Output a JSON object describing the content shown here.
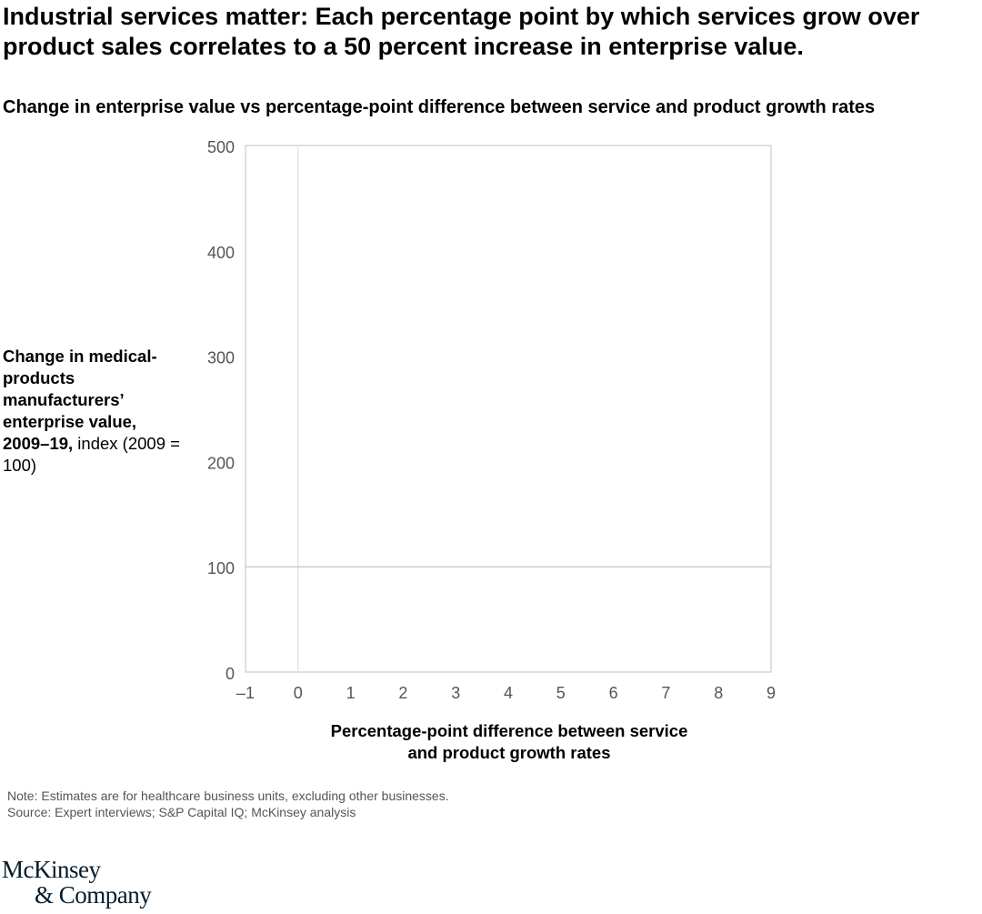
{
  "headline": "Industrial services matter: Each percentage point by which services grow over product sales correlates to a 50 percent increase in enterprise value.",
  "subtitle": "Change in enterprise value vs percentage-point difference between service and product growth rates",
  "footnotes": {
    "note": "Note: Estimates are for healthcare business units, excluding other businesses.",
    "source": "Source: Expert interviews; S&P Capital IQ; McKinsey analysis"
  },
  "logo": {
    "line1": "McKinsey",
    "line2": "& Company"
  },
  "colors": {
    "frame": "#cccccc",
    "reference": "#bdbdbd",
    "tick_text": "#555555"
  },
  "chart_data": {
    "type": "scatter",
    "title": "",
    "ylabel": {
      "bold": "Change in medical-products manufacturers’ enterprise value, 2009–19,",
      "normal": " index (2009 = 100)"
    },
    "xlabel": "Percentage-point difference between service and product growth rates",
    "xlim": [
      -1,
      9
    ],
    "ylim": [
      0,
      500
    ],
    "x_ticks": [
      -1,
      0,
      1,
      2,
      3,
      4,
      5,
      6,
      7,
      8,
      9
    ],
    "x_tick_labels": [
      "–1",
      "0",
      "1",
      "2",
      "3",
      "4",
      "5",
      "6",
      "7",
      "8",
      "9"
    ],
    "y_ticks": [
      0,
      100,
      200,
      300,
      400,
      500
    ],
    "y_tick_labels": [
      "0",
      "100",
      "200",
      "300",
      "400",
      "500"
    ],
    "reference_lines": {
      "x": 0,
      "y": 100
    },
    "series": [],
    "grid": false
  }
}
